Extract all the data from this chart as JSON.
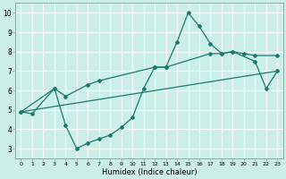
{
  "xlabel": "Humidex (Indice chaleur)",
  "bg_color": "#cceee8",
  "line_color": "#1a7a6e",
  "grid_color": "#ffffff",
  "ylim": [
    2.5,
    10.5
  ],
  "xlim": [
    -0.5,
    23.5
  ],
  "yticks": [
    3,
    4,
    5,
    6,
    7,
    8,
    9,
    10
  ],
  "xticks": [
    0,
    1,
    2,
    3,
    4,
    5,
    6,
    7,
    8,
    9,
    10,
    11,
    12,
    13,
    14,
    15,
    16,
    17,
    18,
    19,
    20,
    21,
    22,
    23
  ],
  "line_zigzag_x": [
    0,
    1,
    3,
    4,
    5,
    6,
    7,
    8,
    9,
    10,
    11,
    12,
    13,
    14,
    15,
    16,
    17,
    18,
    19,
    21,
    22,
    23
  ],
  "line_zigzag_y": [
    4.9,
    4.8,
    6.1,
    4.2,
    3.0,
    3.3,
    3.5,
    3.7,
    4.1,
    4.6,
    6.1,
    7.2,
    7.2,
    8.5,
    10.0,
    9.3,
    8.4,
    7.9,
    8.0,
    7.5,
    6.1,
    7.0
  ],
  "line_upper_x": [
    0,
    3,
    4,
    6,
    7,
    12,
    13,
    17,
    18,
    19,
    20,
    21,
    23
  ],
  "line_upper_y": [
    4.9,
    6.1,
    5.7,
    6.3,
    6.5,
    7.2,
    7.2,
    7.9,
    7.9,
    8.0,
    7.9,
    7.8,
    7.8
  ],
  "line_trend_x": [
    0,
    23
  ],
  "line_trend_y": [
    4.9,
    7.0
  ]
}
